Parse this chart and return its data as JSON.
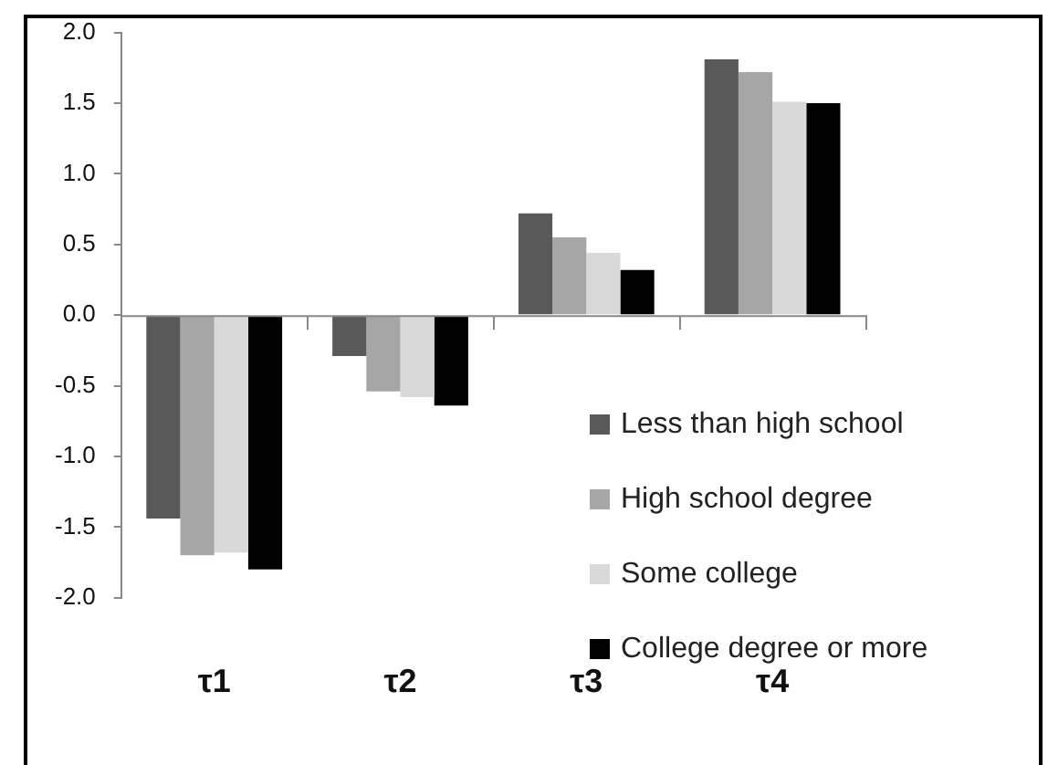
{
  "chart_data": {
    "type": "bar",
    "categories": [
      "τ1",
      "τ2",
      "τ3",
      "τ4"
    ],
    "series": [
      {
        "name": "Less than high school",
        "color": "#595959",
        "values": [
          -1.44,
          -0.29,
          0.72,
          1.81
        ]
      },
      {
        "name": "High school degree",
        "color": "#a6a6a6",
        "values": [
          -1.7,
          -0.54,
          0.55,
          1.72
        ]
      },
      {
        "name": "Some college",
        "color": "#d9d9d9",
        "values": [
          -1.68,
          -0.58,
          0.44,
          1.51
        ]
      },
      {
        "name": "College degree or more",
        "color": "#000000",
        "values": [
          -1.8,
          -0.64,
          0.32,
          1.5
        ]
      }
    ],
    "ylim": [
      -2,
      2
    ],
    "yticks": [
      {
        "value": -2,
        "label": "-2.0"
      },
      {
        "value": -1.5,
        "label": "-1.5"
      },
      {
        "value": -1,
        "label": "-1.0"
      },
      {
        "value": -0.5,
        "label": "-0.5"
      },
      {
        "value": 0,
        "label": "0.0"
      },
      {
        "value": 0.5,
        "label": "0.5"
      },
      {
        "value": 1,
        "label": "1.0"
      },
      {
        "value": 1.5,
        "label": "1.5"
      },
      {
        "value": 2,
        "label": "2.0"
      }
    ],
    "legend": "bottom right"
  }
}
